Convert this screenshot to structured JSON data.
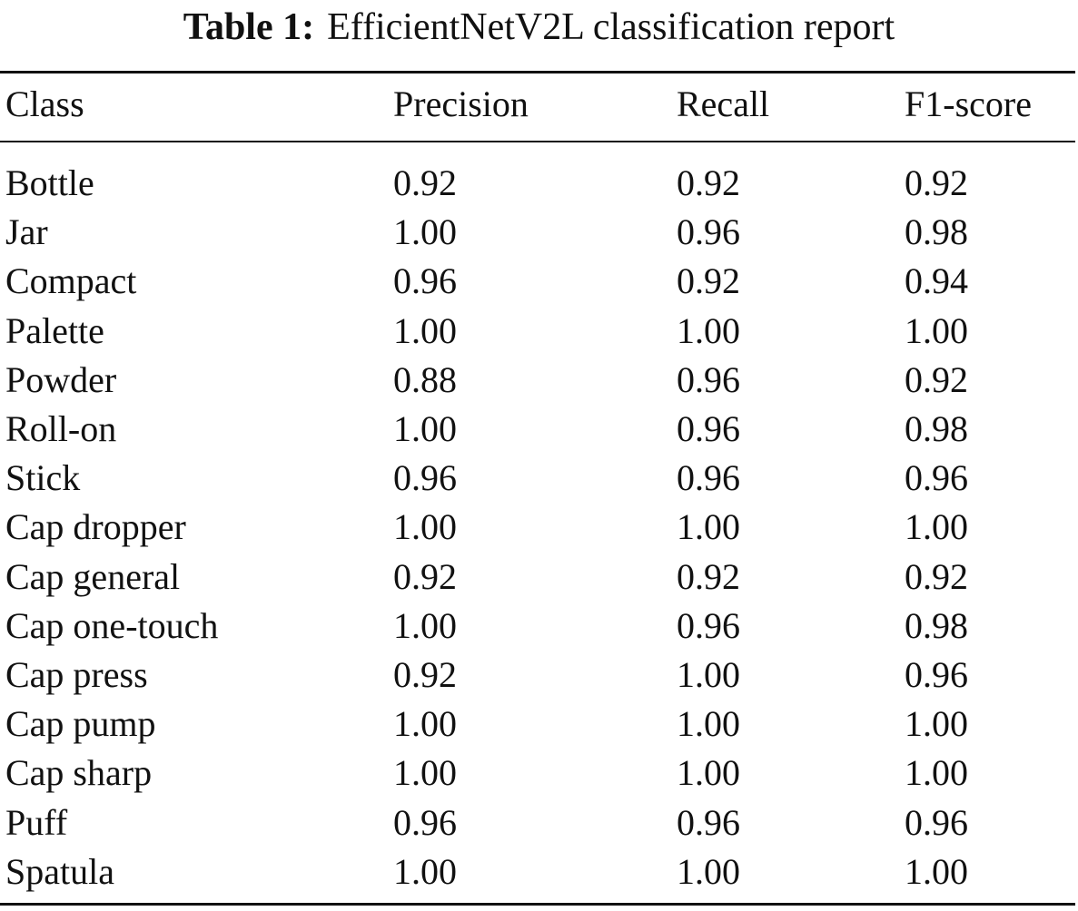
{
  "caption": {
    "label": "Table 1:",
    "text": "EfficientNetV2L classification report"
  },
  "table": {
    "headers": [
      "Class",
      "Precision",
      "Recall",
      "F1-score"
    ],
    "rows": [
      [
        "Bottle",
        "0.92",
        "0.92",
        "0.92"
      ],
      [
        "Jar",
        "1.00",
        "0.96",
        "0.98"
      ],
      [
        "Compact",
        "0.96",
        "0.92",
        "0.94"
      ],
      [
        "Palette",
        "1.00",
        "1.00",
        "1.00"
      ],
      [
        "Powder",
        "0.88",
        "0.96",
        "0.92"
      ],
      [
        "Roll-on",
        "1.00",
        "0.96",
        "0.98"
      ],
      [
        "Stick",
        "0.96",
        "0.96",
        "0.96"
      ],
      [
        "Cap dropper",
        "1.00",
        "1.00",
        "1.00"
      ],
      [
        "Cap general",
        "0.92",
        "0.92",
        "0.92"
      ],
      [
        "Cap one-touch",
        "1.00",
        "0.96",
        "0.98"
      ],
      [
        "Cap press",
        "0.92",
        "1.00",
        "0.96"
      ],
      [
        "Cap pump",
        "1.00",
        "1.00",
        "1.00"
      ],
      [
        "Cap sharp",
        "1.00",
        "1.00",
        "1.00"
      ],
      [
        "Puff",
        "0.96",
        "0.96",
        "0.96"
      ],
      [
        "Spatula",
        "1.00",
        "1.00",
        "1.00"
      ]
    ]
  }
}
